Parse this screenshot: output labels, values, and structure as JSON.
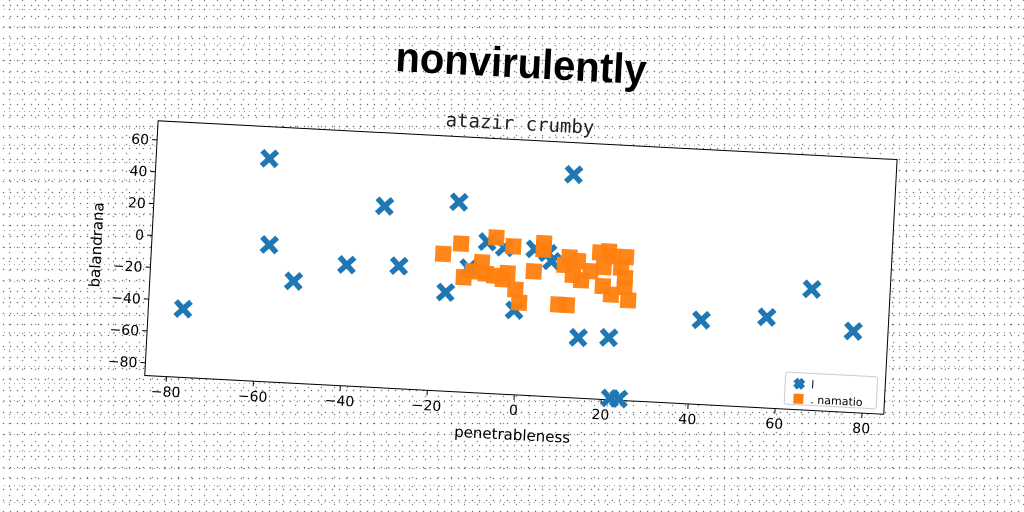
{
  "chart_data": {
    "type": "scatter",
    "title": "nonvirulently",
    "subtitle": "atazir crumby",
    "xlabel": "penetrableness",
    "ylabel": "balandrana",
    "xlim": [
      -85,
      85
    ],
    "ylim": [
      -88,
      72
    ],
    "xticks": [
      -80,
      -60,
      -40,
      -20,
      0,
      20,
      40,
      60,
      80
    ],
    "yticks": [
      -80,
      -60,
      -40,
      -20,
      0,
      20,
      40,
      60
    ],
    "grid": false,
    "legend": "bottom-right",
    "series": [
      {
        "name": "l",
        "marker": "x",
        "color": "#1f77b4",
        "points": [
          [
            -59,
            52
          ],
          [
            11,
            52
          ],
          [
            -15,
            31
          ],
          [
            -32,
            26
          ],
          [
            -58,
            -2
          ],
          [
            -40,
            -12
          ],
          [
            -28,
            -11
          ],
          [
            -52,
            -24
          ],
          [
            -17,
            -26
          ],
          [
            -77,
            -45
          ],
          [
            -12,
            -10
          ],
          [
            -8,
            7
          ],
          [
            -4,
            4
          ],
          [
            3,
            4
          ],
          [
            -1,
            -35
          ],
          [
            7,
            -3
          ],
          [
            6,
            2
          ],
          [
            14,
            -50
          ],
          [
            21,
            -49
          ],
          [
            42,
            -35
          ],
          [
            57,
            -31
          ],
          [
            67,
            -12
          ],
          [
            77,
            -37
          ],
          [
            22,
            -87
          ],
          [
            24,
            -87
          ]
        ]
      },
      {
        "name": ". namatio",
        "marker": "s",
        "color": "#ff7f0e",
        "points": [
          [
            -18,
            -2
          ],
          [
            -14,
            5
          ],
          [
            -6,
            10
          ],
          [
            -2,
            5
          ],
          [
            5,
            8
          ],
          [
            5,
            4
          ],
          [
            11,
            0
          ],
          [
            18,
            4
          ],
          [
            20,
            5
          ],
          [
            23,
            -5
          ],
          [
            21,
            2
          ],
          [
            24,
            2
          ],
          [
            -13,
            -16
          ],
          [
            -11,
            -12
          ],
          [
            -8,
            -13
          ],
          [
            -6,
            -14
          ],
          [
            -9,
            -6
          ],
          [
            -4,
            -16
          ],
          [
            -1,
            -22
          ],
          [
            0,
            -30
          ],
          [
            3,
            -10
          ],
          [
            9,
            -30
          ],
          [
            11,
            -30
          ],
          [
            12,
            -11
          ],
          [
            14,
            -14
          ],
          [
            16,
            -8
          ],
          [
            19,
            -5
          ],
          [
            19,
            -17
          ],
          [
            21,
            -22
          ],
          [
            24,
            -11
          ],
          [
            24,
            -17
          ],
          [
            25,
            -25
          ],
          [
            10,
            -5
          ],
          [
            13,
            -2
          ],
          [
            -3,
            -12
          ]
        ]
      }
    ]
  }
}
